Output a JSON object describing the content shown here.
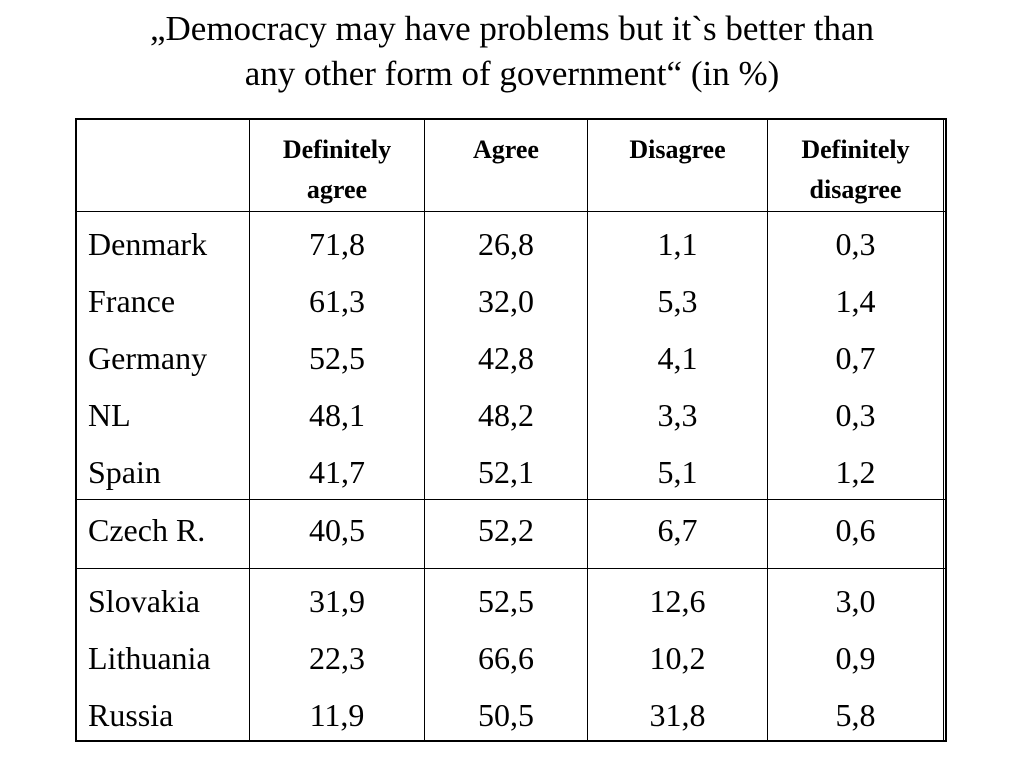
{
  "chart_data": {
    "type": "table",
    "title_line1": "„Democracy may have problems but it`s better than",
    "title_line2": "any other form of government“ (in %)",
    "columns": [
      {
        "line1": "Definitely",
        "line2": "agree"
      },
      {
        "line1": "Agree",
        "line2": ""
      },
      {
        "line1": "Disagree",
        "line2": ""
      },
      {
        "line1": "Definitely",
        "line2": "disagree"
      }
    ],
    "groups": [
      {
        "rows": [
          {
            "country": "Denmark",
            "values": [
              "71,8",
              "26,8",
              "1,1",
              "0,3"
            ]
          },
          {
            "country": "France",
            "values": [
              "61,3",
              "32,0",
              "5,3",
              "1,4"
            ]
          },
          {
            "country": "Germany",
            "values": [
              "52,5",
              "42,8",
              "4,1",
              "0,7"
            ]
          },
          {
            "country": "NL",
            "values": [
              "48,1",
              "48,2",
              "3,3",
              "0,3"
            ]
          },
          {
            "country": "Spain",
            "values": [
              "41,7",
              "52,1",
              "5,1",
              "1,2"
            ]
          }
        ]
      },
      {
        "rows": [
          {
            "country": "Czech R.",
            "values": [
              "40,5",
              "52,2",
              "6,7",
              "0,6"
            ]
          }
        ]
      },
      {
        "rows": [
          {
            "country": "Slovakia",
            "values": [
              "31,9",
              "52,5",
              "12,6",
              "3,0"
            ]
          },
          {
            "country": "Lithuania",
            "values": [
              "22,3",
              "66,6",
              "10,2",
              "0,9"
            ]
          },
          {
            "country": "Russia",
            "values": [
              "11,9",
              "50,5",
              "31,8",
              "5,8"
            ]
          }
        ]
      }
    ]
  }
}
